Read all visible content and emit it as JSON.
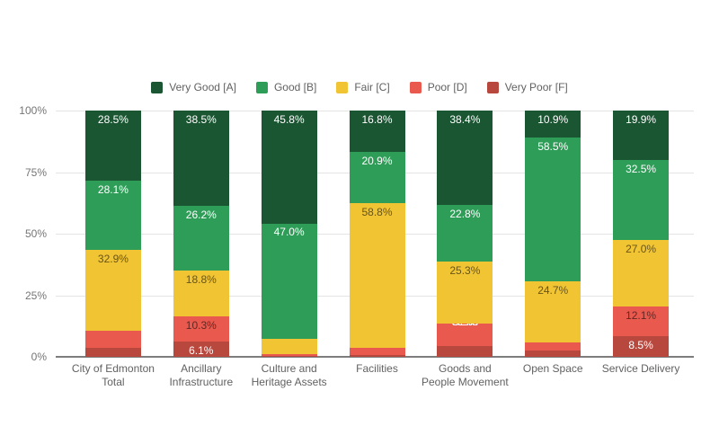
{
  "chart_data": {
    "type": "bar",
    "stacked": true,
    "unit": "%",
    "legend_position": "top",
    "grid": true,
    "ylim": [
      0,
      100
    ],
    "y_ticks": [
      {
        "label": "100%",
        "value": 100
      },
      {
        "label": "75%",
        "value": 75
      },
      {
        "label": "50%",
        "value": 50
      },
      {
        "label": "25%",
        "value": 25
      },
      {
        "label": "0%",
        "value": 0
      }
    ],
    "categories": [
      "City of Edmonton Total",
      "Ancillary Infrastructure",
      "Culture and Heritage Assets",
      "Facilities",
      "Goods and People Movement",
      "Open Space",
      "Service Delivery"
    ],
    "categories_wrapped": [
      [
        "City of Edmonton",
        "Total"
      ],
      [
        "Ancillary",
        "Infrastructure"
      ],
      [
        "Culture and",
        "Heritage Assets"
      ],
      [
        "Facilities"
      ],
      [
        "Goods and",
        "People Movement"
      ],
      [
        "Open Space"
      ],
      [
        "Service Delivery"
      ]
    ],
    "series": [
      {
        "name": "Very Good [A]",
        "color": "#1b5633",
        "label_color_inside": "#ffffff",
        "values": [
          28.5,
          38.5,
          45.8,
          16.8,
          38.4,
          10.9,
          19.9
        ]
      },
      {
        "name": "Good [B]",
        "color": "#2e9d58",
        "label_color_inside": "#ffffff",
        "values": [
          28.1,
          26.2,
          47.0,
          20.9,
          22.8,
          58.5,
          32.5
        ]
      },
      {
        "name": "Fair [C]",
        "color": "#f1c434",
        "label_color_inside": "rgba(0,0,0,0.58)",
        "values": [
          32.9,
          18.8,
          6.2,
          58.8,
          25.3,
          24.7,
          27.0
        ]
      },
      {
        "name": "Poor [D]",
        "color": "#ea594e",
        "label_color_inside": "rgba(0,0,0,0.58)",
        "values": [
          7.0,
          10.3,
          0.7,
          2.7,
          9.2,
          3.5,
          12.1
        ]
      },
      {
        "name": "Very Poor [F]",
        "color": "#b8473d",
        "label_color_inside": "#ffffff",
        "values": [
          3.5,
          6.1,
          0.3,
          0.8,
          4.3,
          2.4,
          8.5
        ]
      }
    ]
  },
  "colors": {
    "background": "#ffffff",
    "gridline": "#e4e4e4",
    "baseline": "#7d7d7d",
    "axis_text": "#757575",
    "category_text": "#616161",
    "legend_text": "#616161"
  }
}
